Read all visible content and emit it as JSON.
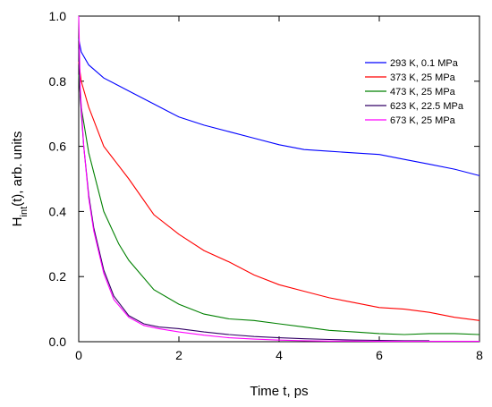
{
  "chart_data": {
    "type": "line",
    "xlabel": "Time t, ps",
    "ylabel_main": "H",
    "ylabel_sub": "int",
    "ylabel_rest": "(t), arb. units",
    "xlim": [
      0,
      8
    ],
    "ylim": [
      0,
      1.0
    ],
    "xticks": [
      0,
      2,
      4,
      6,
      8
    ],
    "yticks": [
      0.0,
      0.2,
      0.4,
      0.6,
      0.8,
      1.0
    ],
    "xtick_labels": [
      "0",
      "2",
      "4",
      "6",
      "8"
    ],
    "ytick_labels": [
      "0.0",
      "0.2",
      "0.4",
      "0.6",
      "0.8",
      "1.0"
    ],
    "grid": false,
    "legend_position": "top-right",
    "series": [
      {
        "name": "293 K, 0.1 MPa",
        "color": "#0000ff",
        "x": [
          0,
          0.05,
          0.2,
          0.5,
          1.0,
          1.5,
          2.0,
          2.5,
          3.0,
          3.5,
          4.0,
          4.5,
          5.0,
          5.5,
          6.0,
          6.5,
          7.0,
          7.5,
          8.0
        ],
        "y": [
          0.93,
          0.89,
          0.85,
          0.81,
          0.77,
          0.73,
          0.69,
          0.665,
          0.645,
          0.625,
          0.605,
          0.59,
          0.585,
          0.58,
          0.575,
          0.56,
          0.545,
          0.53,
          0.51
        ]
      },
      {
        "name": "373 K, 25 MPa",
        "color": "#ff0000",
        "x": [
          0,
          0.05,
          0.2,
          0.5,
          1.0,
          1.5,
          2.0,
          2.5,
          3.0,
          3.5,
          4.0,
          4.5,
          5.0,
          5.5,
          6.0,
          6.5,
          7.0,
          7.5,
          8.0
        ],
        "y": [
          0.86,
          0.8,
          0.72,
          0.6,
          0.5,
          0.39,
          0.33,
          0.28,
          0.245,
          0.205,
          0.175,
          0.155,
          0.135,
          0.12,
          0.105,
          0.1,
          0.09,
          0.075,
          0.065
        ]
      },
      {
        "name": "473 K, 25 MPa",
        "color": "#008000",
        "x": [
          0,
          0.05,
          0.2,
          0.5,
          0.8,
          1.0,
          1.5,
          2.0,
          2.5,
          3.0,
          3.5,
          4.0,
          4.5,
          5.0,
          5.5,
          6.0,
          6.5,
          7.0,
          7.5,
          8.0
        ],
        "y": [
          0.82,
          0.72,
          0.58,
          0.4,
          0.3,
          0.25,
          0.16,
          0.115,
          0.085,
          0.07,
          0.065,
          0.055,
          0.045,
          0.035,
          0.03,
          0.025,
          0.022,
          0.025,
          0.025,
          0.022
        ]
      },
      {
        "name": "623 K, 22.5 MPa",
        "color": "#330066",
        "x": [
          0,
          0.03,
          0.1,
          0.2,
          0.3,
          0.5,
          0.7,
          1.0,
          1.3,
          1.6,
          2.0,
          2.5,
          3.0,
          3.5,
          4.0,
          4.5,
          5.0,
          5.5,
          6.0,
          6.5,
          7.0
        ],
        "y": [
          0.9,
          0.75,
          0.6,
          0.45,
          0.35,
          0.22,
          0.14,
          0.08,
          0.055,
          0.045,
          0.04,
          0.03,
          0.022,
          0.016,
          0.012,
          0.009,
          0.007,
          0.005,
          0.004,
          0.003,
          0.003
        ]
      },
      {
        "name": "673 K, 25 MPa",
        "color": "#ff00ff",
        "x": [
          0,
          0.03,
          0.1,
          0.2,
          0.3,
          0.5,
          0.7,
          1.0,
          1.3,
          1.6,
          2.0,
          2.5,
          3.0,
          3.5,
          4.0,
          4.5,
          5.0,
          5.5,
          6.0,
          6.5,
          7.0,
          7.5,
          8.0
        ],
        "y": [
          1.0,
          0.78,
          0.6,
          0.44,
          0.34,
          0.21,
          0.13,
          0.075,
          0.05,
          0.04,
          0.03,
          0.02,
          0.012,
          0.008,
          0.005,
          0.003,
          0.002,
          0.002,
          0.001,
          0.001,
          0.001,
          0.001,
          0.001
        ]
      }
    ]
  }
}
